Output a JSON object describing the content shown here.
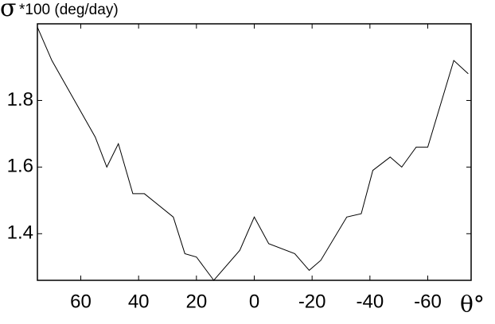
{
  "chart_data": {
    "type": "line",
    "ylabel_symbol": "σ",
    "ylabel": "*100 (deg/day)",
    "xlabel": "θ°",
    "x": [
      75,
      70,
      55,
      51,
      47,
      42,
      38,
      28,
      24,
      20,
      14,
      5,
      0,
      -5,
      -14,
      -19,
      -23,
      -32,
      -37,
      -41,
      -47,
      -51,
      -56,
      -60,
      -69,
      -74
    ],
    "values": [
      2.02,
      1.92,
      1.69,
      1.6,
      1.67,
      1.52,
      1.52,
      1.45,
      1.34,
      1.33,
      1.26,
      1.35,
      1.45,
      1.37,
      1.34,
      1.29,
      1.32,
      1.45,
      1.46,
      1.59,
      1.63,
      1.6,
      1.66,
      1.66,
      1.92,
      1.88
    ],
    "color": "#000000",
    "xlim": [
      75,
      -75
    ],
    "ylim": [
      1.26,
      2.03
    ],
    "xticks": [
      60,
      40,
      20,
      0,
      -20,
      -40,
      -60
    ],
    "yticks": [
      1.8,
      1.6,
      1.4
    ]
  }
}
